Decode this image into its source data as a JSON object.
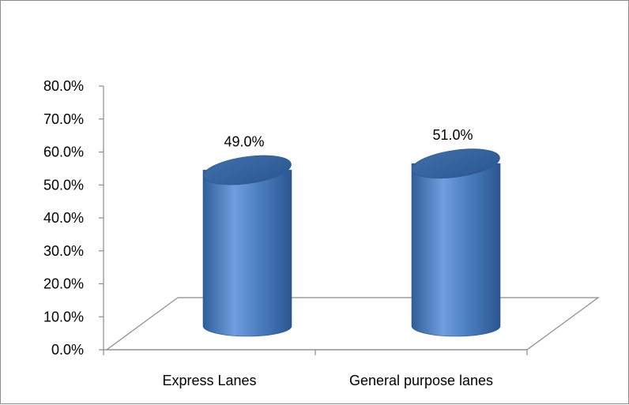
{
  "chart_data": {
    "type": "bar",
    "style": "3d-cylinder",
    "categories": [
      "Express Lanes",
      "General purpose lanes"
    ],
    "values": [
      49.0,
      51.0
    ],
    "data_labels": [
      "49.0%",
      "51.0%"
    ],
    "ylim": [
      0,
      80
    ],
    "yticks": [
      "0.0%",
      "10.0%",
      "20.0%",
      "30.0%",
      "40.0%",
      "50.0%",
      "60.0%",
      "70.0%",
      "80.0%"
    ],
    "title": "",
    "xlabel": "",
    "ylabel": "",
    "grid": false,
    "legend": "none",
    "bar_color": "#4a7ebf",
    "bar_color_light": "#7aa5e0",
    "bar_color_dark": "#2c5a93"
  }
}
